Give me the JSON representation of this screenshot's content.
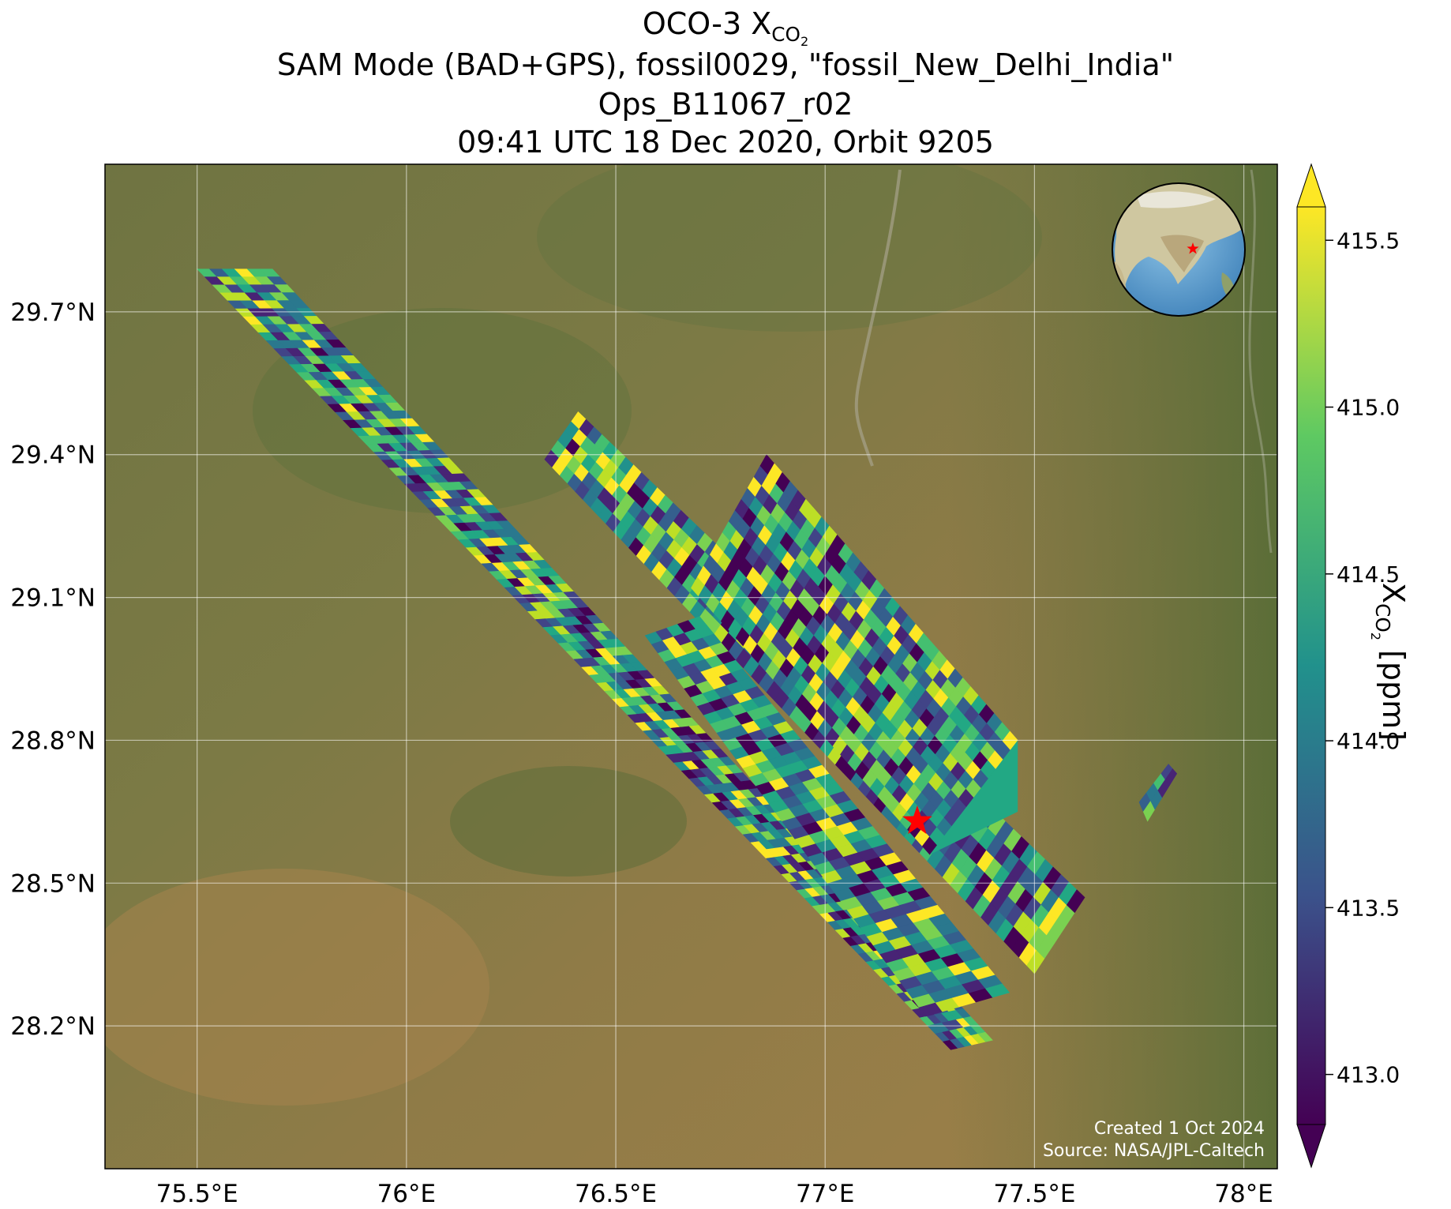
{
  "title": {
    "line1_main": "OCO-3 X",
    "line1_sub": "CO",
    "line1_subsub": "2",
    "line2": "SAM Mode (BAD+GPS), fossil0029, \"fossil_New_Delhi_India\"",
    "line3": "Ops_B11067_r02",
    "line4": "09:41 UTC 18 Dec 2020, Orbit 9205"
  },
  "map": {
    "lon_range": [
      75.28,
      78.08
    ],
    "lat_range": [
      27.9,
      30.01
    ],
    "x_ticks": [
      {
        "value": 75.5,
        "label": "75.5°E"
      },
      {
        "value": 76.0,
        "label": "76°E"
      },
      {
        "value": 76.5,
        "label": "76.5°E"
      },
      {
        "value": 77.0,
        "label": "77°E"
      },
      {
        "value": 77.5,
        "label": "77.5°E"
      },
      {
        "value": 78.0,
        "label": "78°E"
      }
    ],
    "y_ticks": [
      {
        "value": 29.7,
        "label": "29.7°N"
      },
      {
        "value": 29.4,
        "label": "29.4°N"
      },
      {
        "value": 29.1,
        "label": "29.1°N"
      },
      {
        "value": 28.8,
        "label": "28.8°N"
      },
      {
        "value": 28.5,
        "label": "28.5°N"
      },
      {
        "value": 28.2,
        "label": "28.2°N"
      }
    ],
    "grid": true,
    "target": {
      "lon": 77.22,
      "lat": 28.63,
      "marker": "red-star"
    },
    "basemap": "satellite imagery",
    "inset": "globe locator with red star over India",
    "swaths": [
      {
        "name": "swath-1",
        "polygon": [
          [
            75.5,
            29.79
          ],
          [
            75.68,
            29.79
          ],
          [
            77.4,
            28.17
          ],
          [
            77.3,
            28.15
          ]
        ]
      },
      {
        "name": "swath-2",
        "polygon": [
          [
            76.33,
            29.39
          ],
          [
            76.41,
            29.49
          ],
          [
            77.62,
            28.47
          ],
          [
            77.5,
            28.31
          ]
        ]
      },
      {
        "name": "swath-3",
        "polygon": [
          [
            76.57,
            29.02
          ],
          [
            76.7,
            29.06
          ],
          [
            77.44,
            28.27
          ],
          [
            77.24,
            28.22
          ]
        ]
      },
      {
        "name": "swath-4",
        "polygon": [
          [
            76.68,
            29.12
          ],
          [
            76.86,
            29.4
          ],
          [
            77.46,
            28.8
          ],
          [
            77.46,
            28.65
          ],
          [
            77.25,
            28.56
          ]
        ]
      },
      {
        "name": "swath-5",
        "polygon": [
          [
            77.75,
            28.67
          ],
          [
            77.82,
            28.75
          ],
          [
            77.84,
            28.73
          ],
          [
            77.77,
            28.63
          ]
        ]
      }
    ],
    "colors": {
      "highlight": "#ff0000"
    }
  },
  "colorbar": {
    "label_main": "X",
    "label_sub": "CO",
    "label_subsub": "2",
    "label_units": " [ppm]",
    "range": [
      412.85,
      415.6
    ],
    "extend": "both",
    "colormap": "viridis",
    "ticks": [
      {
        "value": 413.0,
        "label": "413.0"
      },
      {
        "value": 413.5,
        "label": "413.5"
      },
      {
        "value": 414.0,
        "label": "414.0"
      },
      {
        "value": 414.5,
        "label": "414.5"
      },
      {
        "value": 415.0,
        "label": "415.0"
      },
      {
        "value": 415.5,
        "label": "415.5"
      }
    ]
  },
  "credits": {
    "line1": "Created 1 Oct 2024",
    "line2": "Source: NASA/JPL-Caltech"
  }
}
